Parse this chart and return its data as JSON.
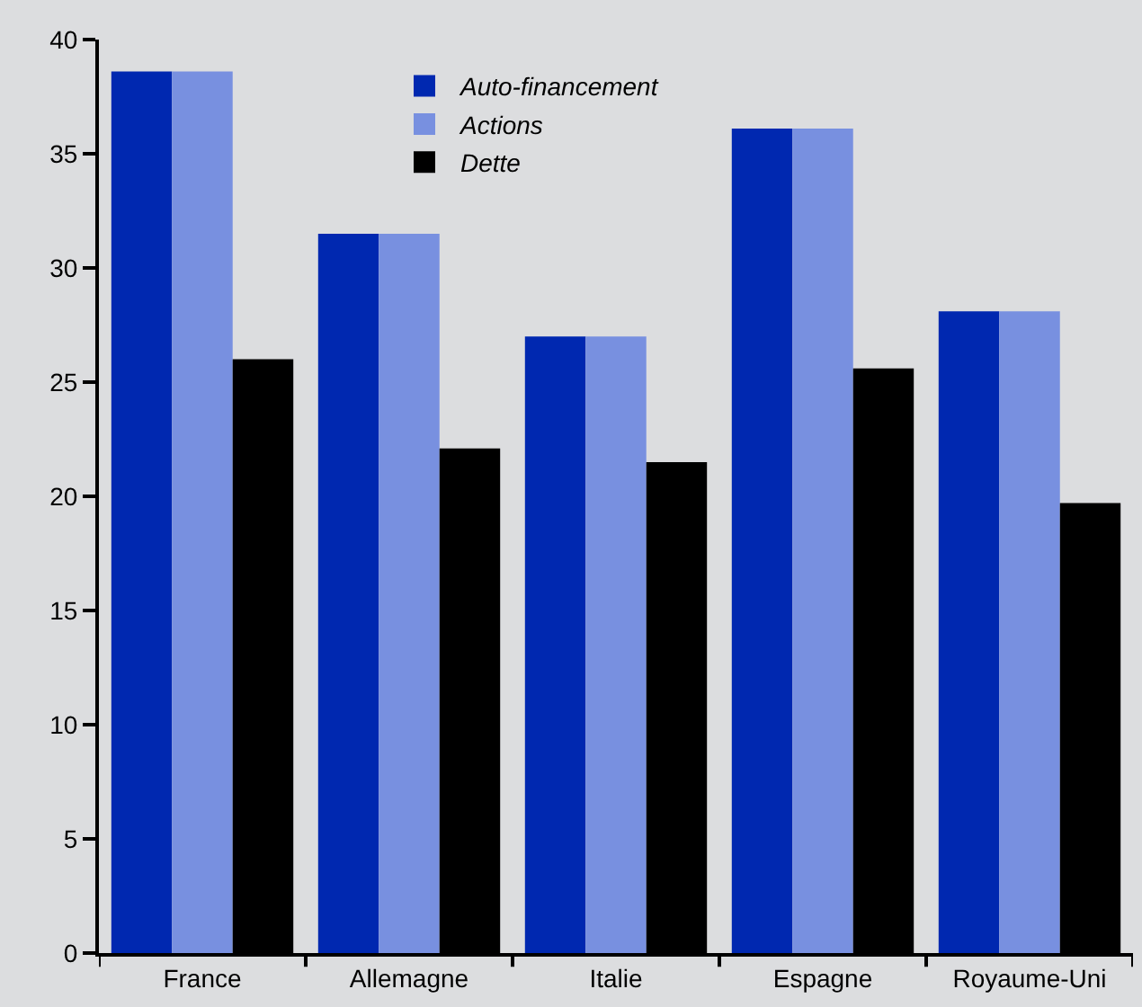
{
  "chart_data": {
    "type": "bar",
    "categories": [
      "France",
      "Allemagne",
      "Italie",
      "Espagne",
      "Royaume-Uni"
    ],
    "series": [
      {
        "name": "Auto-financement",
        "color": "#0028b0",
        "values": [
          38.6,
          31.5,
          27.0,
          36.1,
          28.1
        ]
      },
      {
        "name": "Actions",
        "color": "#7890e0",
        "values": [
          38.6,
          31.5,
          27.0,
          36.1,
          28.1
        ]
      },
      {
        "name": "Dette",
        "color": "#000000",
        "values": [
          26.0,
          22.1,
          21.5,
          25.6,
          19.7
        ]
      }
    ],
    "ylim": [
      0,
      40
    ],
    "yticks": [
      0,
      5,
      10,
      15,
      20,
      25,
      30,
      35,
      40
    ],
    "grid": false,
    "legend": "top"
  }
}
